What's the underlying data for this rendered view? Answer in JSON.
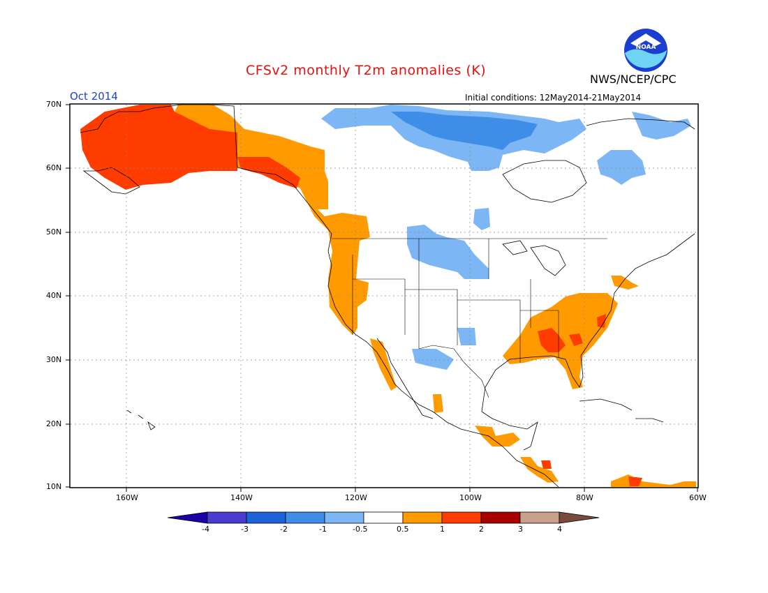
{
  "header": {
    "title": "CFSv2 monthly T2m anomalies (K)",
    "agency": "NWS/NCEP/CPC",
    "period": "Oct 2014",
    "initial_conditions": "Initial conditions: 12May2014-21May2014",
    "logo_text": "NOAA"
  },
  "axes": {
    "lat_labels": [
      "70N",
      "60N",
      "50N",
      "40N",
      "30N",
      "20N",
      "10N"
    ],
    "lon_labels": [
      "160W",
      "140W",
      "120W",
      "100W",
      "80W",
      "60W"
    ]
  },
  "colorbar": {
    "tick_labels": [
      "-4",
      "-3",
      "-2",
      "-1",
      "-0.5",
      "0.5",
      "1",
      "2",
      "3",
      "4"
    ],
    "colors": [
      "#1c00a8",
      "#4b3ccd",
      "#1d63d8",
      "#3e8ee8",
      "#7cb6f4",
      "#ffffff",
      "#ff9a00",
      "#ff3c00",
      "#a80000",
      "#c8a08c",
      "#7a4a3c"
    ]
  },
  "map": {
    "region": "North America",
    "lat_range": [
      10,
      70
    ],
    "lon_range": [
      -170,
      -60
    ]
  }
}
